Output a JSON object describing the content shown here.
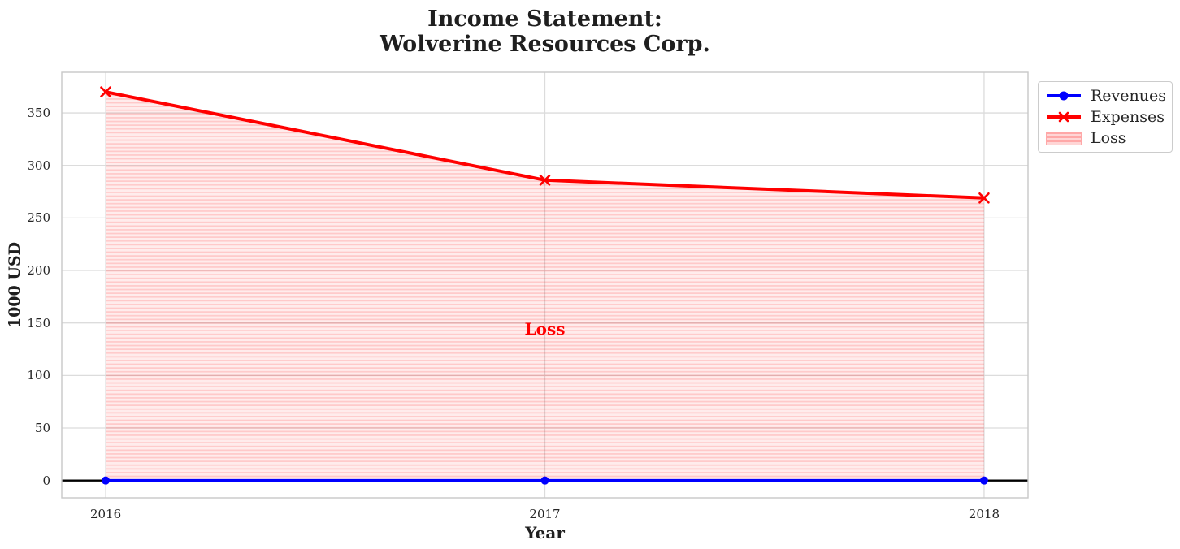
{
  "chart_data": {
    "type": "line",
    "title_lines": [
      "Income Statement:",
      "Wolverine Resources Corp."
    ],
    "xlabel": "Year",
    "ylabel": "1000 USD",
    "x": [
      2016,
      2017,
      2018
    ],
    "series": [
      {
        "name": "Revenues",
        "values": [
          0,
          0,
          0
        ],
        "color": "#0000ff",
        "marker": "circle",
        "linewidth": 3.6
      },
      {
        "name": "Expenses",
        "values": [
          370,
          286,
          269
        ],
        "color": "#ff0000",
        "marker": "x",
        "linewidth": 4
      }
    ],
    "fill_between": {
      "label": "Loss",
      "between": [
        "Expenses",
        "Revenues"
      ],
      "color": "#ff0000",
      "face_alpha": 0.075,
      "hatch": "horizontal",
      "hatch_alpha": 0.15
    },
    "annotation": {
      "text": "Loss",
      "x": 2017,
      "y": 144,
      "color": "#ff0000"
    },
    "xticks": [
      2016,
      2017,
      2018
    ],
    "yticks": [
      0,
      50,
      100,
      150,
      200,
      250,
      300,
      350
    ],
    "xlim": [
      2015.9,
      2018.1
    ],
    "ylim": [
      -16.5,
      388.7
    ],
    "grid": true,
    "zero_line_color": "#000000",
    "legend": {
      "position": "upper right outside",
      "entries": [
        "Revenues",
        "Expenses",
        "Loss"
      ]
    },
    "colors": {
      "grid": "#dcdcdc",
      "spine": "#c8c8c8",
      "tick_text": "#262626",
      "title_text": "#1f1f1f",
      "legend_patch_bg": "#ffd6d6",
      "legend_patch_line": "#ffa8a8"
    }
  }
}
